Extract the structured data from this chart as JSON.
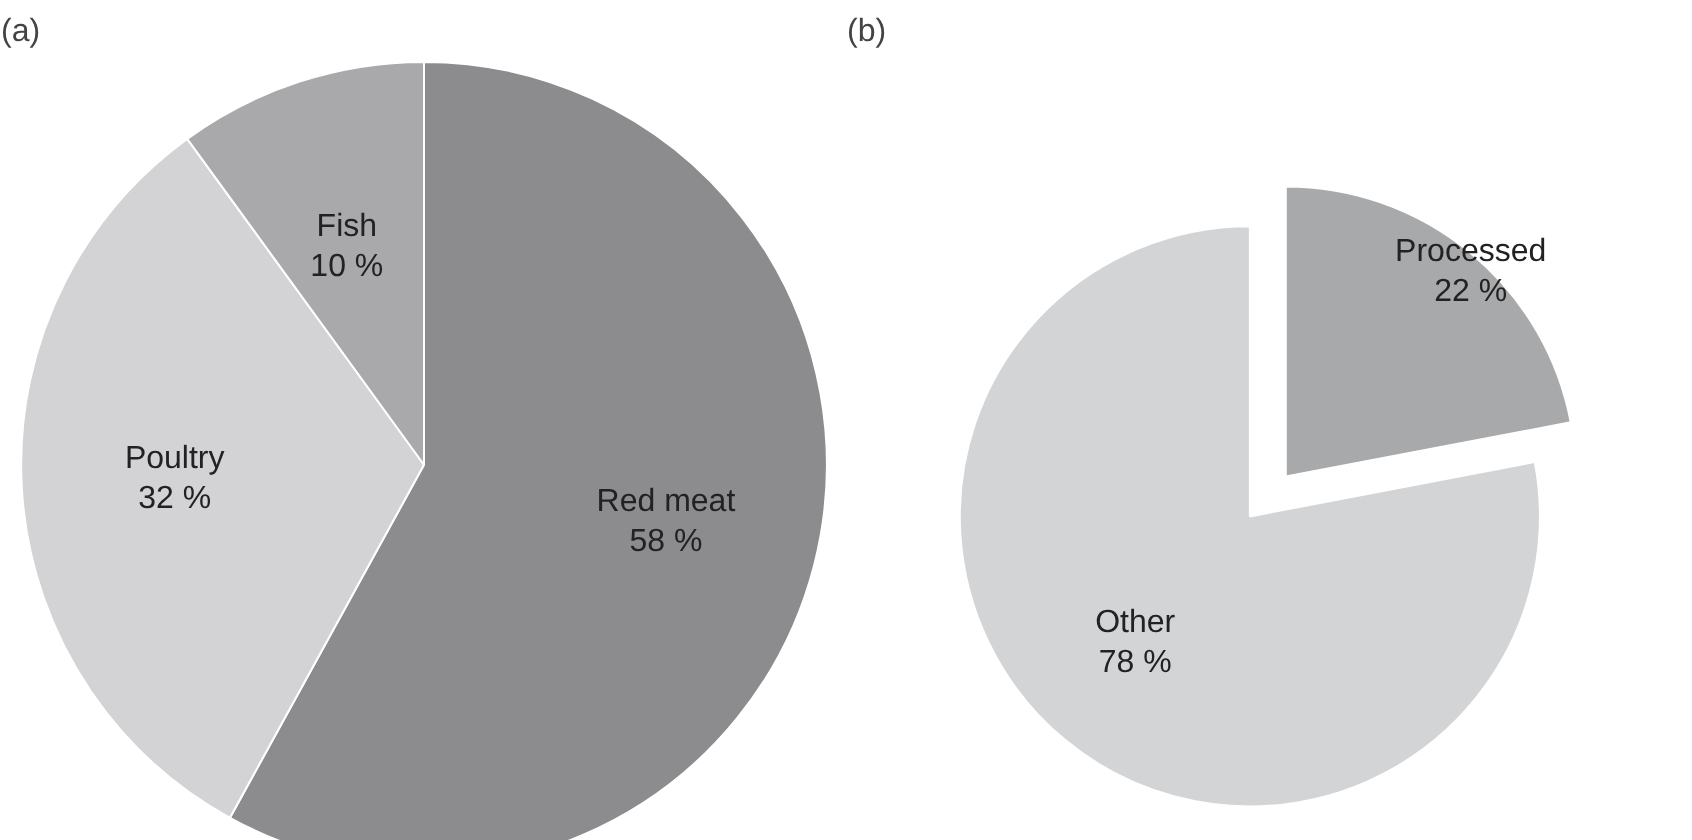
{
  "chart_data": [
    {
      "type": "pie",
      "title": "(a)",
      "categories": [
        "Red meat",
        "Poultry",
        "Fish"
      ],
      "values": [
        58,
        32,
        10
      ],
      "colors": [
        "#8c8c8f",
        "#d3d3d5",
        "#a9a9ab"
      ],
      "value_labels": [
        "58 %",
        "32 %",
        "10 %"
      ],
      "legend": false
    },
    {
      "type": "pie",
      "title": "(b)",
      "categories": [
        "Processed",
        "Other"
      ],
      "values": [
        22,
        78
      ],
      "colors": [
        "#a8a9ab",
        "#d3d4d6"
      ],
      "value_labels": [
        "22 %",
        "78 %"
      ],
      "legend": false
    }
  ]
}
